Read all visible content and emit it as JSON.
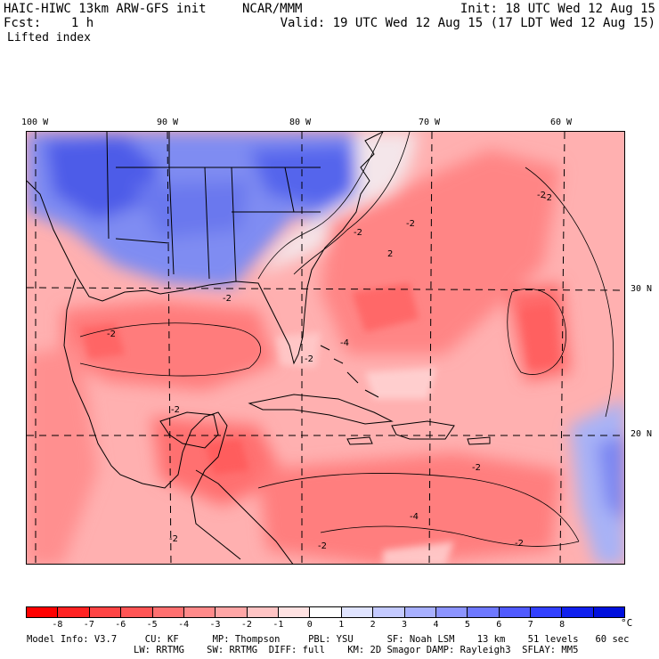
{
  "header": {
    "model_title": "HAIC-HIWC 13km ARW-GFS init",
    "org": "NCAR/MMM",
    "init": "Init: 18 UTC Wed 12 Aug 15",
    "fcst": "Fcst:    1 h",
    "valid": "Valid: 19 UTC Wed 12 Aug 15 (17 LDT Wed 12 Aug 15)",
    "field": "Lifted index"
  },
  "map": {
    "lon_labels": [
      "100 W",
      "90 W",
      "80 W",
      "70 W",
      "60 W"
    ],
    "lat_labels": [
      "30 N",
      "20 N"
    ],
    "contour_labels": [
      "-2",
      "-2",
      "-2",
      "-2",
      "-2",
      "-2",
      "-2",
      "-4",
      "-4",
      "-2",
      "-2",
      "-2",
      "-2",
      "-2",
      "2",
      "-2"
    ]
  },
  "colorbar": {
    "unit": "°C",
    "labels": [
      "-8",
      "-7",
      "-6",
      "-5",
      "-4",
      "-3",
      "-2",
      "-1",
      "0",
      "1",
      "2",
      "3",
      "4",
      "5",
      "6",
      "7",
      "8"
    ],
    "colors": [
      "#ff0000",
      "#ff2222",
      "#ff4444",
      "#ff5555",
      "#ff7070",
      "#ff8a8a",
      "#ffa6a6",
      "#ffc4c4",
      "#ffe2e2",
      "#ffffff",
      "#e0e4ff",
      "#c4caff",
      "#a8b0ff",
      "#8c94ff",
      "#6e78ff",
      "#505aff",
      "#3240ff",
      "#1020ee",
      "#0010dd"
    ]
  },
  "footer": {
    "line1": "Model Info: V3.7     CU: KF      MP: Thompson     PBL: YSU      SF: Noah LSM    13 km    51 levels   60 sec",
    "line2": "LW: RRTMG    SW: RRTMG  DIFF: full    KM: 2D Smagor DAMP: Rayleigh3  SFLAY: MM5"
  }
}
